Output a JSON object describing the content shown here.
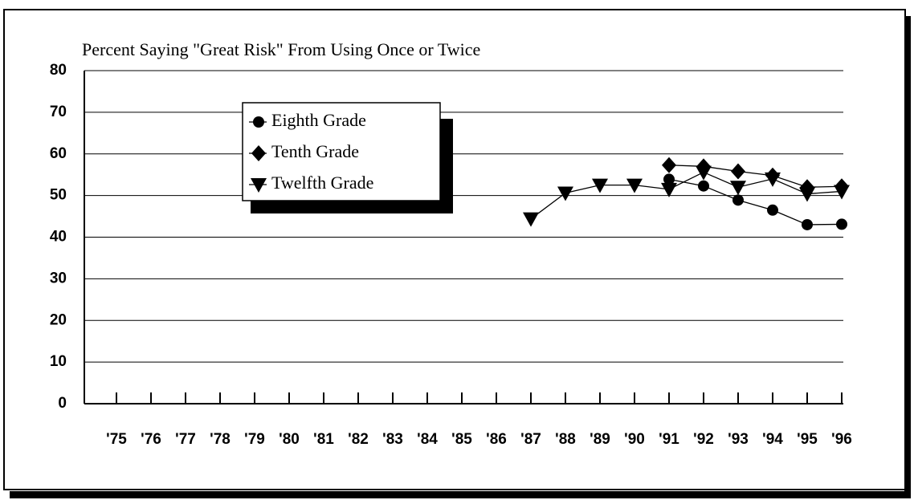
{
  "chart_data": {
    "type": "line",
    "title": "Percent Saying \"Great Risk\" From Using Once or Twice",
    "categories": [
      "'75",
      "'76",
      "'77",
      "'78",
      "'79",
      "'80",
      "'81",
      "'82",
      "'83",
      "'84",
      "'85",
      "'86",
      "'87",
      "'88",
      "'89",
      "'90",
      "'91",
      "'92",
      "'93",
      "'94",
      "'95",
      "'96"
    ],
    "series": [
      {
        "name": "Eighth Grade",
        "color": "#000000",
        "marker": "circle",
        "values": [
          null,
          null,
          null,
          null,
          null,
          null,
          null,
          null,
          null,
          null,
          null,
          null,
          null,
          null,
          null,
          null,
          53.9,
          52.3,
          48.9,
          46.5,
          43,
          43.1
        ]
      },
      {
        "name": "Tenth Grade",
        "color": "#000000",
        "marker": "diamond",
        "values": [
          null,
          null,
          null,
          null,
          null,
          null,
          null,
          null,
          null,
          null,
          null,
          null,
          null,
          null,
          null,
          null,
          57.3,
          57,
          55.8,
          54.8,
          52,
          52.2
        ]
      },
      {
        "name": "Twelfth Grade",
        "color": "#000000",
        "marker": "triangle-down",
        "values": [
          null,
          null,
          null,
          null,
          null,
          null,
          null,
          null,
          null,
          null,
          null,
          null,
          44.4,
          50.6,
          52.5,
          52.5,
          51.5,
          55.6,
          52,
          54,
          50.4,
          51
        ]
      }
    ],
    "ylim": [
      0,
      80
    ],
    "yticks": [
      0,
      10,
      20,
      30,
      40,
      50,
      60,
      70,
      80
    ],
    "grid": true,
    "legend": "upper left"
  }
}
